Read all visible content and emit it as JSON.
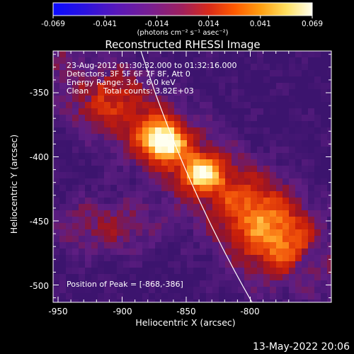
{
  "colorbar": {
    "ticks": [
      "-0.069",
      "-0.041",
      "-0.014",
      "0.014",
      "0.041",
      "0.069"
    ],
    "units": "(photons cm⁻² s⁻¹ asec⁻²)"
  },
  "title": "Reconstructed RHESSI Image",
  "info": {
    "line1": "23-Aug-2012 01:30:32.000 to 01:32:16.000",
    "line2": "Detectors: 3F 5F 6F 7F 8F, Att 0",
    "line3": "Energy Range: 3.0 - 6.0 keV",
    "line4_clean": "Clean",
    "line4_counts": "Total counts: 3.82E+03"
  },
  "peak_label": "Position of Peak = [-868,-386]",
  "axes": {
    "xlabel": "Heliocentric X (arcsec)",
    "ylabel": "Heliocentric Y (arcsec)",
    "xticks": [
      "-950",
      "-900",
      "-850",
      "-800"
    ],
    "yticks": [
      "-350",
      "-400",
      "-450",
      "-500"
    ]
  },
  "timestamp": "13-May-2022 20:06",
  "colors": {
    "background": "#000000",
    "frame": "#ffffff"
  }
}
